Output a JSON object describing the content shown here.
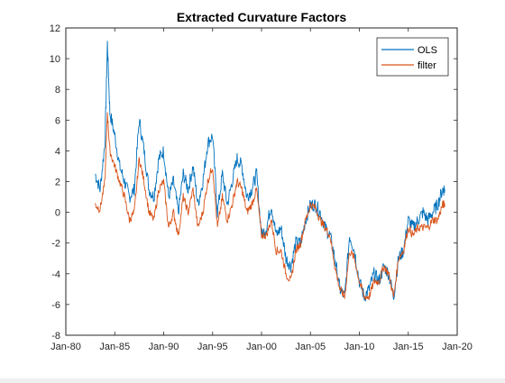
{
  "chart_data": {
    "type": "line",
    "title": "Extracted Curvature Factors",
    "xlabel": "",
    "ylabel": "",
    "x_ticks": [
      "Jan-80",
      "Jan-85",
      "Jan-90",
      "Jan-95",
      "Jan-00",
      "Jan-05",
      "Jan-10",
      "Jan-15",
      "Jan-20"
    ],
    "x_range": [
      "Jan-80",
      "Jan-20"
    ],
    "y_ticks": [
      -8,
      -6,
      -4,
      -2,
      0,
      2,
      4,
      6,
      8,
      10,
      12
    ],
    "ylim": [
      -8,
      12
    ],
    "legend_position": "top-right",
    "grid": false,
    "colors": {
      "OLS": "#0072bd",
      "filter": "#d95319"
    },
    "x_dates": [
      "Jan-83",
      "Jul-83",
      "Jan-84",
      "Apr-84",
      "Jul-84",
      "Jan-85",
      "Jul-85",
      "Jan-86",
      "Jul-86",
      "Jan-87",
      "Jul-87",
      "Jan-88",
      "Jul-88",
      "Jan-89",
      "Jul-89",
      "Jan-90",
      "Jul-90",
      "Jan-91",
      "Jul-91",
      "Jan-92",
      "Jul-92",
      "Jan-93",
      "Jul-93",
      "Jan-94",
      "Jul-94",
      "Jan-95",
      "Jul-95",
      "Jan-96",
      "Jul-96",
      "Jan-97",
      "Jul-97",
      "Jan-98",
      "Jul-98",
      "Jan-99",
      "Jul-99",
      "Jan-00",
      "Jul-00",
      "Jan-01",
      "Jul-01",
      "Jan-02",
      "Jul-02",
      "Jan-03",
      "Jul-03",
      "Jan-04",
      "Jul-04",
      "Jan-05",
      "Jul-05",
      "Jan-06",
      "Jul-06",
      "Jan-07",
      "Jul-07",
      "Jan-08",
      "Jul-08",
      "Jan-09",
      "Jul-09",
      "Jan-10",
      "Jul-10",
      "Jan-11",
      "Jul-11",
      "Jan-12",
      "Jul-12",
      "Jan-13",
      "Jul-13",
      "Jan-14",
      "Jul-14",
      "Jan-15",
      "Jul-15",
      "Jan-16",
      "Jul-16",
      "Jan-17",
      "Jul-17",
      "Jan-18",
      "Jul-18"
    ],
    "series": [
      {
        "name": "OLS",
        "values": [
          2.5,
          1.5,
          4.5,
          11.0,
          6.5,
          5.0,
          3.0,
          2.0,
          1.0,
          1.5,
          6.0,
          4.0,
          1.5,
          1.0,
          3.5,
          4.0,
          1.0,
          2.0,
          0.0,
          2.5,
          1.5,
          3.0,
          0.5,
          2.0,
          4.5,
          5.0,
          0.0,
          2.5,
          0.5,
          2.0,
          3.5,
          3.0,
          1.0,
          1.5,
          2.5,
          -1.5,
          -1.0,
          0.5,
          -1.5,
          -1.0,
          -3.0,
          -3.5,
          -2.0,
          -2.0,
          -0.5,
          0.5,
          0.5,
          0.0,
          -1.0,
          -1.5,
          -3.0,
          -5.0,
          -5.5,
          -1.5,
          -2.5,
          -4.5,
          -5.5,
          -5.0,
          -4.0,
          -4.5,
          -3.5,
          -4.0,
          -5.5,
          -3.0,
          -2.5,
          -0.5,
          -1.0,
          -0.5,
          0.0,
          -0.5,
          0.0,
          0.5,
          1.5
        ]
      },
      {
        "name": "filter",
        "values": [
          0.5,
          0.2,
          2.0,
          6.5,
          4.0,
          3.0,
          2.0,
          1.0,
          -0.5,
          0.0,
          3.5,
          2.0,
          0.0,
          -0.5,
          1.5,
          2.0,
          -1.0,
          0.0,
          -1.5,
          1.0,
          0.0,
          1.5,
          -1.0,
          0.0,
          2.0,
          3.0,
          -1.0,
          1.0,
          -0.5,
          0.5,
          2.0,
          1.5,
          0.0,
          0.5,
          1.5,
          -1.5,
          -1.5,
          -0.5,
          -2.5,
          -2.5,
          -4.0,
          -4.5,
          -2.5,
          -2.0,
          -0.5,
          0.5,
          0.3,
          -0.5,
          -1.0,
          -1.5,
          -3.5,
          -5.0,
          -5.5,
          -2.5,
          -3.0,
          -4.5,
          -5.5,
          -5.5,
          -4.5,
          -4.5,
          -3.5,
          -4.0,
          -5.5,
          -3.0,
          -2.5,
          -1.0,
          -1.5,
          -1.0,
          -1.0,
          -1.0,
          -0.5,
          -0.5,
          0.5
        ]
      }
    ]
  }
}
